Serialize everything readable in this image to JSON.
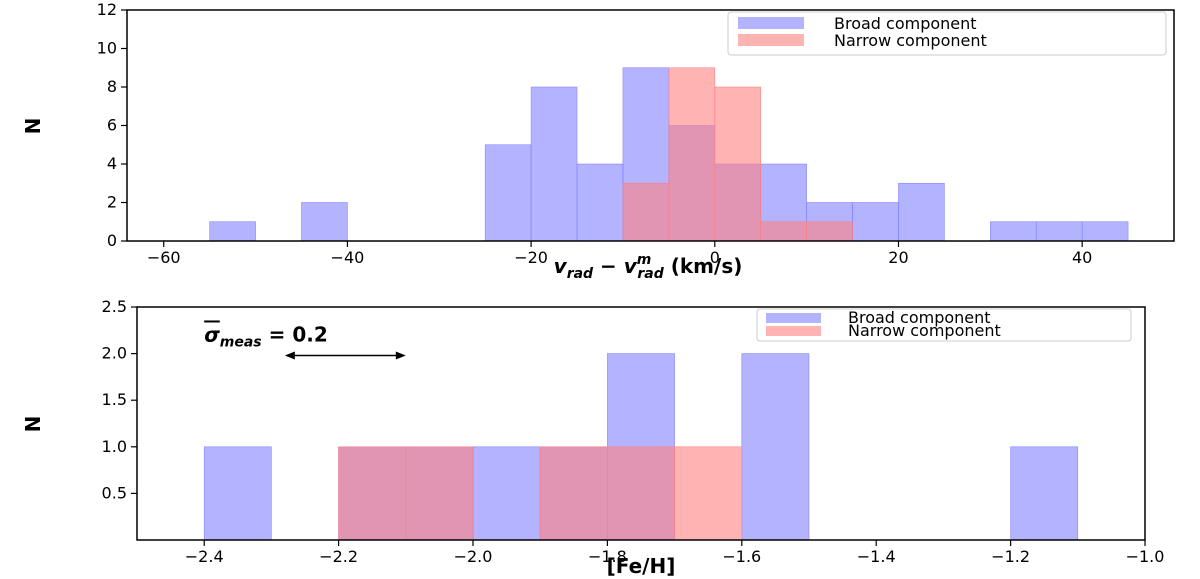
{
  "chart_data": [
    {
      "type": "bar",
      "subtype": "histogram",
      "xlabel": "v_rad − v^m_rad (km/s)",
      "xlabel_parts": {
        "v": "v",
        "sub1": "rad",
        "minus": " − ",
        "sup2": "m",
        "sub2": "rad",
        "units": " (km/s)"
      },
      "ylabel": "N",
      "xlim": [
        -64,
        50
      ],
      "ylim": [
        0,
        12
      ],
      "xticks": [
        -60,
        -40,
        -20,
        0,
        20,
        40
      ],
      "xtick_labels": [
        "−60",
        "−40",
        "−20",
        "0",
        "20",
        "40"
      ],
      "yticks": [
        0,
        2,
        4,
        6,
        8,
        10,
        12
      ],
      "ytick_labels": [
        "0",
        "2",
        "4",
        "6",
        "8",
        "10",
        "12"
      ],
      "grid": false,
      "legend_position": "top-right",
      "series": [
        {
          "name": "Broad component",
          "color": "#8080ff",
          "opacity": 0.6,
          "bins": [
            [
              -55,
              -50,
              1
            ],
            [
              -45,
              -40,
              2
            ],
            [
              -25,
              -20,
              5
            ],
            [
              -20,
              -15,
              8
            ],
            [
              -15,
              -10,
              4
            ],
            [
              -10,
              -5,
              9
            ],
            [
              -5,
              0,
              6
            ],
            [
              0,
              5,
              4
            ],
            [
              5,
              10,
              4
            ],
            [
              10,
              15,
              2
            ],
            [
              15,
              20,
              2
            ],
            [
              20,
              25,
              3
            ],
            [
              30,
              35,
              1
            ],
            [
              35,
              40,
              1
            ],
            [
              40,
              45,
              1
            ]
          ]
        },
        {
          "name": "Narrow component",
          "color": "#ff8080",
          "opacity": 0.6,
          "bins": [
            [
              -10,
              -5,
              3
            ],
            [
              -5,
              0,
              9
            ],
            [
              0,
              5,
              8
            ],
            [
              5,
              10,
              1
            ],
            [
              10,
              15,
              1
            ]
          ]
        }
      ]
    },
    {
      "type": "bar",
      "subtype": "histogram",
      "xlabel": "[Fe/H]",
      "ylabel": "N",
      "xlim": [
        -2.5,
        -1.0
      ],
      "ylim": [
        0,
        2.5
      ],
      "xticks": [
        -2.4,
        -2.2,
        -2.0,
        -1.8,
        -1.6,
        -1.4,
        -1.2,
        -1.0
      ],
      "xtick_labels": [
        "−2.4",
        "−2.2",
        "−2.0",
        "−1.8",
        "−1.6",
        "−1.4",
        "−1.2",
        "−1.0"
      ],
      "yticks": [
        0.5,
        1.0,
        1.5,
        2.0,
        2.5
      ],
      "ytick_labels": [
        "0.5",
        "1.0",
        "1.5",
        "2.0",
        "2.5"
      ],
      "grid": false,
      "legend_position": "top-right",
      "annotation": {
        "text_parts": {
          "sigma": "σ",
          "sub": "meas",
          "rest": " = 0.2"
        },
        "arrow_x": [
          -2.28,
          -2.1
        ],
        "arrow_y": 1.98,
        "text_x": -2.4,
        "text_y": 2.13
      },
      "series": [
        {
          "name": "Broad component",
          "color": "#8080ff",
          "opacity": 0.6,
          "bins": [
            [
              -2.4,
              -2.3,
              1
            ],
            [
              -2.2,
              -2.1,
              1
            ],
            [
              -2.1,
              -2.0,
              1
            ],
            [
              -2.0,
              -1.9,
              1
            ],
            [
              -1.9,
              -1.8,
              1
            ],
            [
              -1.8,
              -1.7,
              2
            ],
            [
              -1.6,
              -1.5,
              2
            ],
            [
              -1.2,
              -1.1,
              1
            ]
          ]
        },
        {
          "name": "Narrow component",
          "color": "#ff8080",
          "opacity": 0.6,
          "bins": [
            [
              -2.2,
              -2.1,
              1
            ],
            [
              -2.1,
              -2.0,
              1
            ],
            [
              -1.9,
              -1.8,
              1
            ],
            [
              -1.8,
              -1.7,
              1
            ],
            [
              -1.7,
              -1.6,
              1
            ]
          ]
        }
      ]
    }
  ]
}
